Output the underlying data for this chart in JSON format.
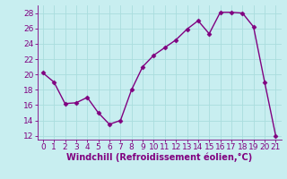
{
  "x": [
    0,
    1,
    2,
    3,
    4,
    5,
    6,
    7,
    8,
    9,
    10,
    11,
    12,
    13,
    14,
    15,
    16,
    17,
    18,
    19,
    20,
    21
  ],
  "y": [
    20.2,
    19.0,
    16.2,
    16.3,
    17.0,
    15.0,
    13.5,
    14.0,
    18.0,
    21.0,
    22.5,
    23.5,
    24.5,
    25.9,
    27.0,
    25.3,
    28.1,
    28.1,
    28.0,
    26.2,
    19.0,
    12.0
  ],
  "line_color": "#800080",
  "marker": "D",
  "marker_size": 2.5,
  "bg_color": "#c8eef0",
  "grid_color": "#aadddd",
  "xlabel": "Windchill (Refroidissement éolien,°C)",
  "xlabel_color": "#800080",
  "tick_color": "#800080",
  "ylim": [
    11.5,
    29.0
  ],
  "xlim": [
    -0.5,
    21.5
  ],
  "yticks": [
    12,
    14,
    16,
    18,
    20,
    22,
    24,
    26,
    28
  ],
  "xticks": [
    0,
    1,
    2,
    3,
    4,
    5,
    6,
    7,
    8,
    9,
    10,
    11,
    12,
    13,
    14,
    15,
    16,
    17,
    18,
    19,
    20,
    21
  ],
  "font_size": 6.5,
  "xlabel_fontsize": 7.0,
  "linewidth": 1.0
}
